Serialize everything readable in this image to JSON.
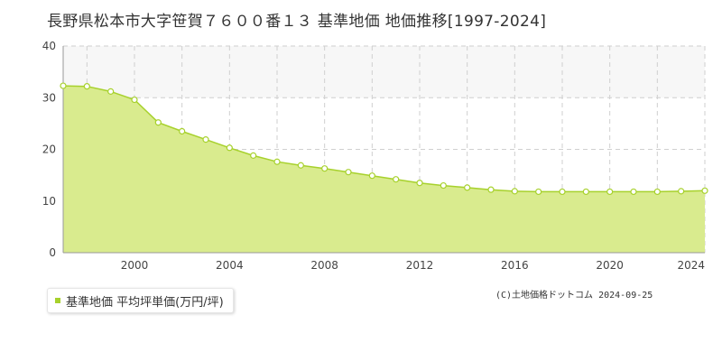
{
  "title": "長野県松本市大字笹賀７６００番１３ 基準地価 地価推移[1997-2024]",
  "legend": {
    "label": "基準地価 平均坪単価(万円/坪)"
  },
  "copyright": "(C)土地価格ドットコム 2024-09-25",
  "colors": {
    "fill": "#d9eb8e",
    "line": "#a7d12c",
    "marker_fill": "#ffffff",
    "grid": "#cfcfcf",
    "band": "#f7f7f7",
    "swatch": "#a7d12c"
  },
  "chart_data": {
    "type": "area",
    "x": [
      1997,
      1998,
      1999,
      2000,
      2001,
      2002,
      2003,
      2004,
      2005,
      2006,
      2007,
      2008,
      2009,
      2010,
      2011,
      2012,
      2013,
      2014,
      2015,
      2016,
      2017,
      2018,
      2019,
      2020,
      2021,
      2022,
      2023,
      2024
    ],
    "series": [
      {
        "name": "基準地価 平均坪単価(万円/坪)",
        "values": [
          32.3,
          32.2,
          31.2,
          29.6,
          25.2,
          23.5,
          21.9,
          20.3,
          18.8,
          17.6,
          16.9,
          16.3,
          15.6,
          14.9,
          14.2,
          13.5,
          13.0,
          12.6,
          12.2,
          11.9,
          11.8,
          11.8,
          11.8,
          11.8,
          11.8,
          11.8,
          11.9,
          12.0
        ]
      }
    ],
    "xlim": [
      1997,
      2024
    ],
    "ylim": [
      0,
      40
    ],
    "yticks": [
      0,
      10,
      20,
      30,
      40
    ],
    "xticks": [
      2000,
      2004,
      2008,
      2012,
      2016,
      2020,
      2024
    ],
    "xlabel": "",
    "ylabel": "",
    "grid": true,
    "legend_position": "bottom-left"
  }
}
